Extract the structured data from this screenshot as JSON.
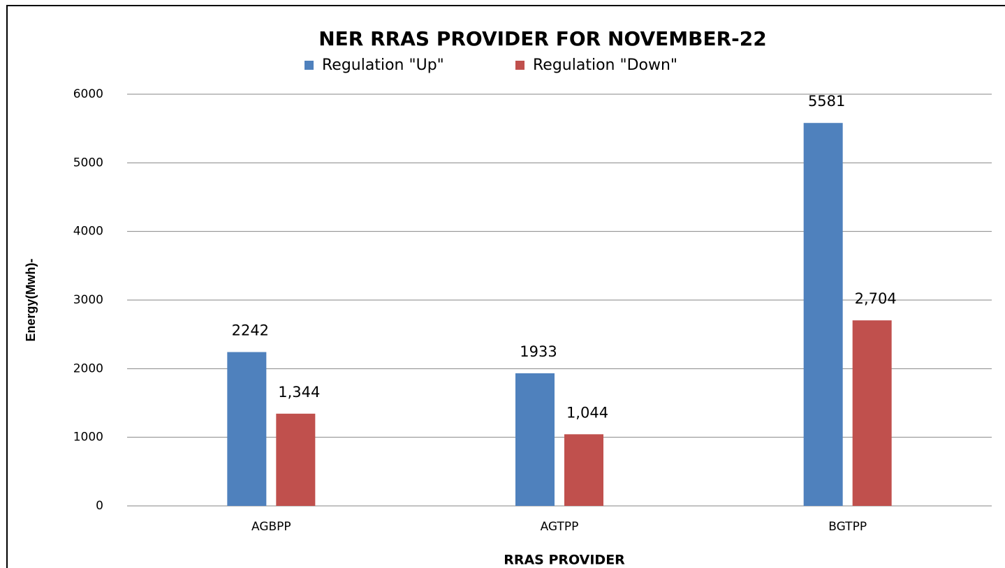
{
  "chart_data": {
    "type": "bar",
    "title": "NER RRAS PROVIDER FOR NOVEMBER-22",
    "x_label": "RRAS PROVIDER",
    "y_label": "Energy(Mwh)-",
    "categories": [
      "AGBPP",
      "AGTPP",
      "BGTPP"
    ],
    "series": [
      {
        "name": "Regulation \"Up\"",
        "color": "#4f81bd",
        "values": [
          2242,
          1933,
          5581
        ]
      },
      {
        "name": "Regulation \"Down\"",
        "color": "#c0504d",
        "values": [
          1344,
          1044,
          2704
        ],
        "value_labels": [
          "1,344",
          "1,044",
          "2,704"
        ]
      }
    ],
    "ylim": [
      0,
      6000
    ],
    "yticks": [
      0,
      1000,
      2000,
      3000,
      4000,
      5000,
      6000
    ],
    "grid": true,
    "legend": "top"
  }
}
